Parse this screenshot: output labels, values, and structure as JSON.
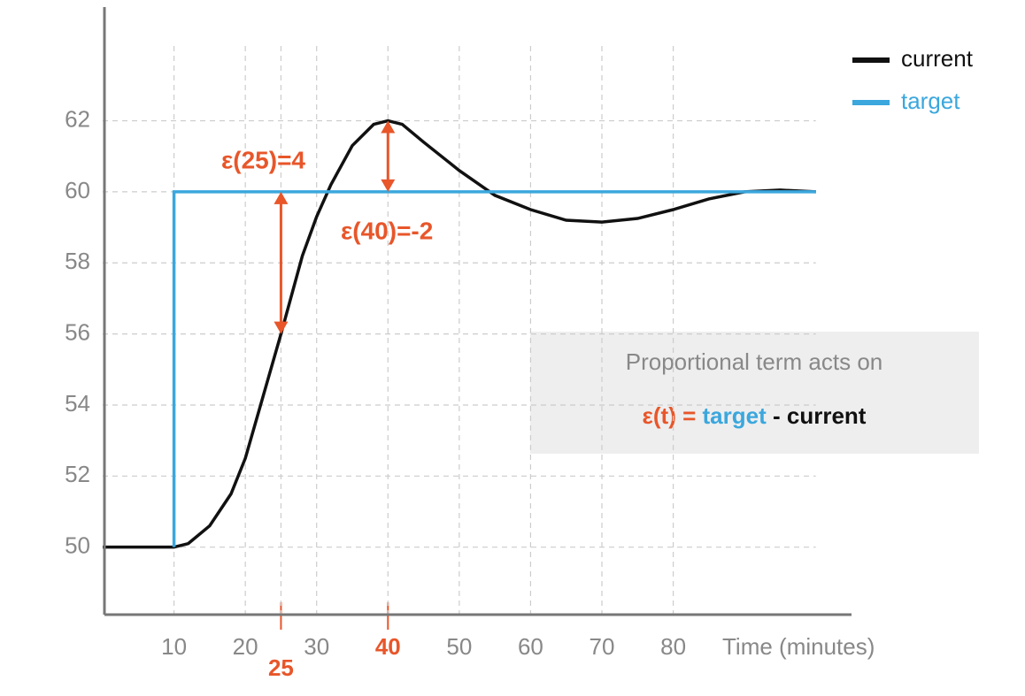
{
  "chart_data": {
    "type": "line",
    "xlabel": "Time (minutes)",
    "xlim": [
      0,
      105
    ],
    "ylim": [
      48.1,
      65.2
    ],
    "xticks": [
      10,
      20,
      30,
      50,
      60,
      70,
      80
    ],
    "highlight_ticks": [
      25,
      40
    ],
    "yticks": [
      50,
      52,
      54,
      56,
      58,
      60,
      62
    ],
    "grid": true,
    "legend": "upper right",
    "series": [
      {
        "name": "current",
        "color": "#111111",
        "x": [
          0,
          10,
          12,
          15,
          18,
          20,
          22,
          25,
          28,
          30,
          32,
          35,
          38,
          40,
          42,
          45,
          50,
          55,
          60,
          65,
          70,
          75,
          80,
          85,
          90,
          95,
          100
        ],
        "values": [
          50,
          50,
          50.1,
          50.6,
          51.5,
          52.5,
          53.9,
          56,
          58.2,
          59.3,
          60.2,
          61.3,
          61.9,
          62,
          61.9,
          61.4,
          60.6,
          59.9,
          59.5,
          59.2,
          59.15,
          59.25,
          59.5,
          59.8,
          60,
          60.05,
          60
        ]
      },
      {
        "name": "target",
        "color": "#3ba7dd",
        "x": [
          10,
          10,
          100
        ],
        "values": [
          50,
          60,
          60
        ]
      }
    ],
    "annotations": [
      {
        "x": 25,
        "from": 56,
        "to": 60,
        "label": "ε(25)=4",
        "color": "#e8562a"
      },
      {
        "x": 40,
        "from": 60,
        "to": 62,
        "label": "ε(40)=-2",
        "color": "#e8562a"
      }
    ],
    "note": {
      "title": "Proportional term acts on",
      "lhs": "ε(t) =",
      "target": "target",
      "rest": "- current"
    }
  }
}
